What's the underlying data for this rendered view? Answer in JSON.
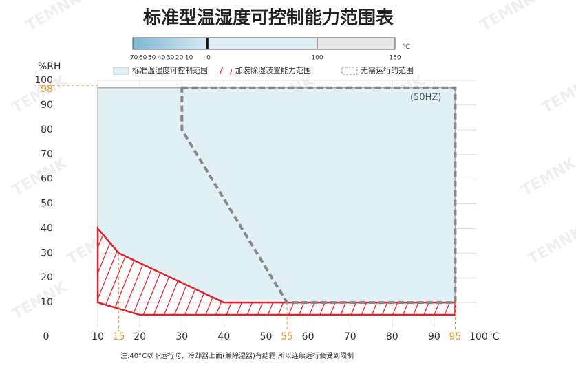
{
  "chart_data": {
    "type": "region",
    "title": "标准型温湿度可控制能力范围表",
    "temp_scale": {
      "labels": [
        "-70",
        "-60",
        "-50",
        "-40",
        "-30",
        "-20",
        "-10",
        "0",
        "100",
        "150"
      ],
      "unit": "℃"
    },
    "ylabel": "%RH",
    "xlim": [
      0,
      100
    ],
    "ylim": [
      0,
      100
    ],
    "xticks": [
      0,
      10,
      20,
      30,
      40,
      50,
      60,
      70,
      80,
      90,
      {
        "value": 100,
        "label": "100°C"
      }
    ],
    "yticks": [
      10,
      20,
      30,
      40,
      50,
      60,
      70,
      80,
      90,
      100
    ],
    "highlight_xticks": [
      15,
      55,
      95
    ],
    "highlight_yticks": [
      98
    ],
    "grid": true,
    "series": [
      {
        "name": "标准温湿度可控制范围",
        "color": "#e0f0f4",
        "style": "fill",
        "x": [
          10,
          95,
          95,
          40,
          15,
          10
        ],
        "y": [
          97,
          97,
          10,
          10,
          30,
          40
        ]
      },
      {
        "name": "加装除湿装置能力范围",
        "color": "#e0202a",
        "style": "hatch",
        "x": [
          10,
          15,
          40,
          95,
          95,
          20,
          10
        ],
        "y": [
          40,
          30,
          10,
          10,
          5,
          5,
          10
        ]
      },
      {
        "name": "无需运行的范围",
        "color": "#888888",
        "style": "dashed",
        "x": [
          30,
          95,
          95,
          55,
          30
        ],
        "y": [
          97,
          97,
          10,
          10,
          80
        ]
      }
    ],
    "annotation": "(50HZ)",
    "note": "注:40°C以下运行时、冷却器上面(兼除湿器)有结霜,所以连续运行会受到限制",
    "watermark": "TEMNK"
  }
}
